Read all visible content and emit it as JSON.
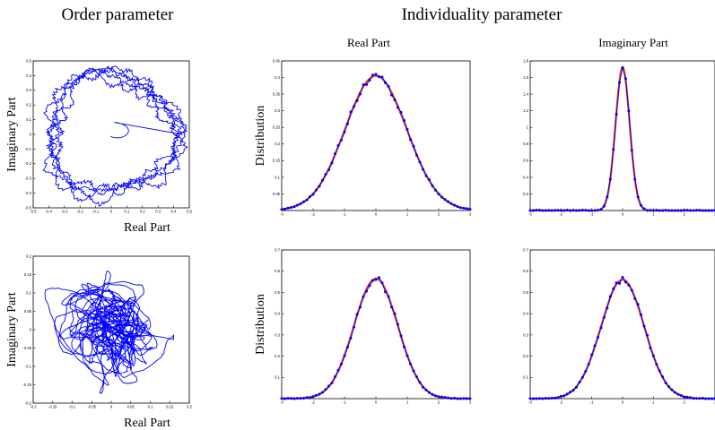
{
  "headers": {
    "left": "Order parameter",
    "right": "Individuality parameter",
    "col_real": "Real Part",
    "col_imag": "Imaginary Part"
  },
  "colors": {
    "primary": "#0000ff",
    "fit": "#ff4500",
    "axis": "#000000"
  },
  "chart_data": [
    {
      "id": "order-top",
      "type": "line",
      "xlabel": "Real Part",
      "ylabel": "Imaginary Part",
      "xlim": [
        -0.5,
        0.5
      ],
      "ylim": [
        -0.5,
        0.5
      ],
      "xticks": [
        -0.5,
        -0.4,
        -0.3,
        -0.2,
        -0.1,
        0,
        0.1,
        0.2,
        0.3,
        0.4,
        0.5
      ],
      "yticks": [
        -0.5,
        -0.4,
        -0.3,
        -0.2,
        -0.1,
        0,
        0.1,
        0.2,
        0.3,
        0.4,
        0.5
      ],
      "xtick_labels": [
        "-0.5",
        "-0.4",
        "-0.3",
        "-0.2",
        "-0.1",
        "0",
        "0.1",
        "0.2",
        "0.3",
        "0.4",
        "0.5"
      ],
      "ytick_labels": [
        "-0.5",
        "-0.4",
        "-0.3",
        "-0.2",
        "-0.1",
        "0",
        "0.1",
        "0.2",
        "0.3",
        "0.4",
        "0.5"
      ],
      "trajectory": {
        "kind": "ring",
        "center": [
          0,
          0
        ],
        "radius": 0.4,
        "start": [
          0.02,
          0.01
        ],
        "color": "#0000ff"
      }
    },
    {
      "id": "order-bottom",
      "type": "line",
      "xlabel": "Real Part",
      "ylabel": "Imaginary Part",
      "xlim": [
        -0.2,
        0.2
      ],
      "ylim": [
        -0.2,
        0.2
      ],
      "xticks": [
        -0.2,
        -0.15,
        -0.1,
        -0.05,
        0,
        0.05,
        0.1,
        0.15,
        0.2
      ],
      "yticks": [
        -0.2,
        -0.15,
        -0.1,
        -0.05,
        0,
        0.05,
        0.1,
        0.15,
        0.2
      ],
      "xtick_labels": [
        "-0.2",
        "-0.15",
        "-0.1",
        "-0.05",
        "0",
        "0.05",
        "0.1",
        "0.15",
        "0.2"
      ],
      "ytick_labels": [
        "-0.2",
        "-0.15",
        "-0.1",
        "-0.05",
        "0",
        "0.05",
        "0.1",
        "0.15",
        "0.2"
      ],
      "trajectory": {
        "kind": "tangle",
        "center": [
          0,
          0
        ],
        "spread": 0.07,
        "color": "#0000ff"
      }
    },
    {
      "id": "dist-real-top",
      "type": "line",
      "title": "Real Part",
      "ylabel": "Distribution",
      "xlim": [
        -3,
        3
      ],
      "ylim": [
        0,
        0.45
      ],
      "xticks": [
        -3,
        -2,
        -1,
        0,
        1,
        2,
        3
      ],
      "xtick_labels": [
        "-3",
        "-2",
        "-1",
        "0",
        "1",
        "2",
        "3"
      ],
      "yticks": [
        0.05,
        0.1,
        0.15,
        0.2,
        0.25,
        0.3,
        0.35,
        0.4,
        0.45
      ],
      "ytick_labels": [
        "0.05",
        "0.1",
        "0.15",
        "0.2",
        "0.25",
        "0.3",
        "0.35",
        "0.4",
        "0.45"
      ],
      "gaussian": {
        "peak": 0.405,
        "sigma": 0.98
      },
      "series": [
        {
          "values_desc": "histogram",
          "color": "#0000ff"
        },
        {
          "values_desc": "fit",
          "color": "#ff4500"
        }
      ]
    },
    {
      "id": "dist-imag-top",
      "type": "line",
      "title": "Imaginary Part",
      "xlim": [
        -3,
        3
      ],
      "ylim": [
        0,
        1.8
      ],
      "xticks": [
        -3,
        -2,
        -1,
        0,
        1,
        2,
        3
      ],
      "xtick_labels": [
        "-3",
        "-2",
        "-1",
        "0",
        "1",
        "2",
        "3"
      ],
      "yticks": [
        0.2,
        0.4,
        0.6,
        0.8,
        1,
        1.2,
        1.4,
        1.6,
        1.8
      ],
      "ytick_labels": [
        "0.2",
        "0.4",
        "0.6",
        "0.8",
        "1",
        "1.2",
        "1.4",
        "1.6",
        "1.8"
      ],
      "gaussian": {
        "peak": 1.72,
        "sigma": 0.23
      },
      "series": [
        {
          "values_desc": "histogram",
          "color": "#0000ff"
        },
        {
          "values_desc": "fit",
          "color": "#ff4500"
        }
      ]
    },
    {
      "id": "dist-real-bottom",
      "type": "line",
      "ylabel": "Distribution",
      "xlim": [
        -3,
        3
      ],
      "ylim": [
        0,
        0.7
      ],
      "xticks": [
        -3,
        -2,
        -1,
        0,
        1,
        2,
        3
      ],
      "xtick_labels": [
        "-3",
        "-2",
        "-1",
        "0",
        "1",
        "2",
        "3"
      ],
      "yticks": [
        0.1,
        0.2,
        0.3,
        0.4,
        0.5,
        0.6,
        0.7
      ],
      "ytick_labels": [
        "0.1",
        "0.2",
        "0.3",
        "0.4",
        "0.5",
        "0.6",
        "0.7"
      ],
      "gaussian": {
        "peak": 0.565,
        "sigma": 0.7
      },
      "series": [
        {
          "values_desc": "histogram",
          "color": "#0000ff"
        },
        {
          "values_desc": "fit",
          "color": "#ff4500"
        }
      ]
    },
    {
      "id": "dist-imag-bottom",
      "type": "line",
      "xlim": [
        -3,
        3
      ],
      "ylim": [
        0,
        0.7
      ],
      "xticks": [
        -3,
        -2,
        -1,
        0,
        1,
        2,
        3
      ],
      "xtick_labels": [
        "-3",
        "-2",
        "-1",
        "0",
        "1",
        "2",
        "3"
      ],
      "yticks": [
        0.1,
        0.2,
        0.3,
        0.4,
        0.5,
        0.6,
        0.7
      ],
      "ytick_labels": [
        "0.1",
        "0.2",
        "0.3",
        "0.4",
        "0.5",
        "0.6",
        "0.7"
      ],
      "gaussian": {
        "peak": 0.56,
        "sigma": 0.7
      },
      "series": [
        {
          "values_desc": "histogram",
          "color": "#0000ff"
        },
        {
          "values_desc": "fit",
          "color": "#ff4500"
        }
      ]
    }
  ]
}
